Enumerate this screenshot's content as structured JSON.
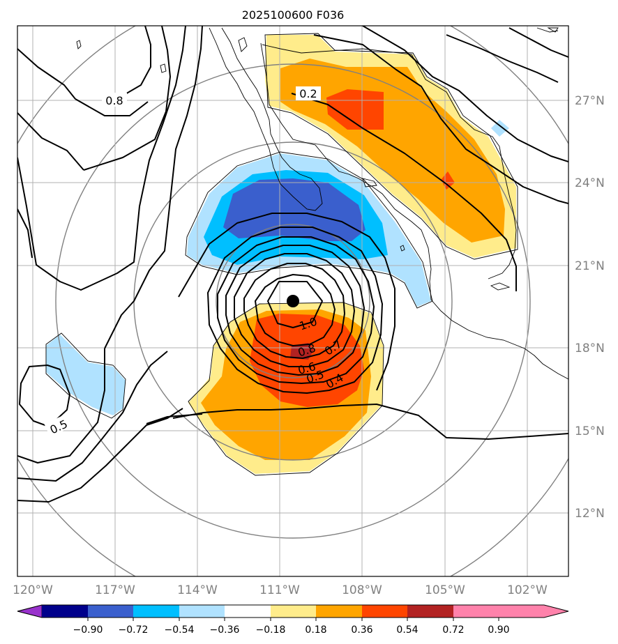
{
  "title": "2025100600 F036",
  "map": {
    "lon_ticks": [
      "120°W",
      "117°W",
      "114°W",
      "111°W",
      "108°W",
      "105°W",
      "102°W"
    ],
    "lat_ticks": [
      "27°N",
      "24°N",
      "21°N",
      "18°N",
      "15°N",
      "12°N"
    ],
    "storm_center_marker": "black-dot"
  },
  "contour_labels": [
    "0.8",
    "0.2",
    "1.0",
    "0.8",
    "0.7",
    "0.6",
    "0.5",
    "0.4",
    "0.5"
  ],
  "colorbar": {
    "ticks": [
      "−0.90",
      "−0.72",
      "−0.54",
      "−0.36",
      "−0.18",
      "0.18",
      "0.36",
      "0.54",
      "0.72",
      "0.90"
    ],
    "colors": [
      "#9932cc",
      "#00008b",
      "#3a5fcd",
      "#00bfff",
      "#b0e2ff",
      "#ffffff",
      "#ffec8b",
      "#ffa500",
      "#ff4500",
      "#b22222",
      "#ff82ab"
    ]
  },
  "fill_colors": {
    "pale_yellow": "#ffec8b",
    "orange": "#ffa500",
    "red_orange": "#ff4500",
    "dark_red": "#b22222",
    "light_blue": "#b0e2ff",
    "sky_blue": "#00bfff",
    "royal_blue": "#3a5fcd"
  }
}
